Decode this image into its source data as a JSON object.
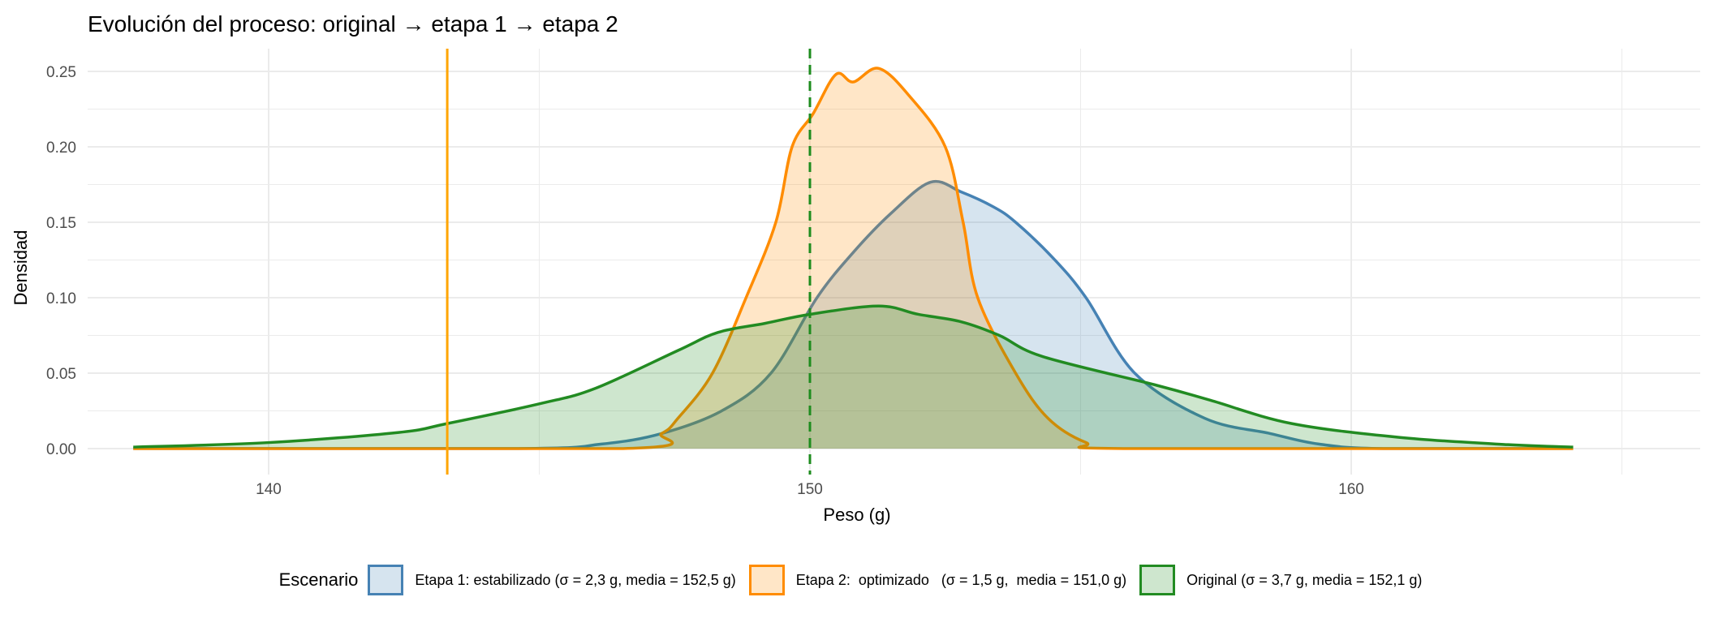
{
  "chart_data": {
    "type": "area",
    "title": "Evolución del proceso: original → etapa 1 → etapa 2",
    "xlabel": "Peso (g)",
    "ylabel": "Densidad",
    "xlim": [
      137.5,
      164.1
    ],
    "ylim": [
      0,
      0.26
    ],
    "xticks": [
      140,
      150,
      160
    ],
    "yticks": [
      0.0,
      0.05,
      0.1,
      0.15,
      0.2,
      0.25
    ],
    "ytick_labels": [
      "0.00",
      "0.05",
      "0.10",
      "0.15",
      "0.20",
      "0.25"
    ],
    "xtick_labels": [
      "140",
      "150",
      "160"
    ],
    "grid": true,
    "legend_title": "Escenario",
    "legend_position": "bottom",
    "vlines": [
      {
        "x": 143.3,
        "style": "solid",
        "color": "#FFA500"
      },
      {
        "x": 150,
        "style": "dashed",
        "color": "#1E8C1E"
      }
    ],
    "series": [
      {
        "name": "Etapa 1:  estabilizado (σ = 2,3 g,  media = 152,5 g)",
        "line": "#4682B4",
        "fill": "#4682B4",
        "x": [
          137.5,
          144.6,
          146.15,
          147.26,
          148.37,
          149.28,
          150.13,
          150.8,
          151.5,
          152.23,
          152.8,
          153.4,
          153.8,
          154.5,
          155.1,
          156.0,
          157.3,
          158.5,
          159.4,
          160.6,
          164.1
        ],
        "y": [
          0,
          0,
          0.003,
          0.01,
          0.025,
          0.05,
          0.1,
          0.13,
          0.156,
          0.1766,
          0.17,
          0.16,
          0.15,
          0.126,
          0.1,
          0.05,
          0.02,
          0.01,
          0.003,
          0,
          0
        ]
      },
      {
        "name": "Etapa 2:  optimizado   (σ = 1,5 g,  media = 151,0 g)",
        "line": "#FF8C00",
        "fill": "#FF8C00",
        "x": [
          137.5,
          146.55,
          147.26,
          147.56,
          148.2,
          148.82,
          149.37,
          149.67,
          150.06,
          150.48,
          150.8,
          151.27,
          151.83,
          152.5,
          152.83,
          153.1,
          153.8,
          154.4,
          155.1,
          155.8,
          164.1
        ],
        "y": [
          0,
          0,
          0.01,
          0.02,
          0.05,
          0.1,
          0.15,
          0.2,
          0.222,
          0.248,
          0.243,
          0.252,
          0.234,
          0.2,
          0.15,
          0.1,
          0.05,
          0.02,
          0.004,
          0,
          0
        ]
      },
      {
        "name": "Original  (σ = 3,7 g,  media = 152,1 g)",
        "line": "#228B22",
        "fill": "#228B22",
        "x": [
          137.5,
          140,
          142.4,
          143.3,
          145.04,
          146.04,
          147.56,
          148.3,
          149.17,
          150,
          151.27,
          152,
          152.8,
          153.5,
          154.3,
          156.4,
          157.4,
          158.9,
          160.9,
          162.9,
          164.1
        ],
        "y": [
          0.001,
          0.004,
          0.0107,
          0.0166,
          0.03,
          0.04,
          0.065,
          0.077,
          0.083,
          0.089,
          0.0945,
          0.089,
          0.084,
          0.075,
          0.061,
          0.042,
          0.032,
          0.0166,
          0.0074,
          0.0026,
          0.001
        ]
      }
    ]
  }
}
